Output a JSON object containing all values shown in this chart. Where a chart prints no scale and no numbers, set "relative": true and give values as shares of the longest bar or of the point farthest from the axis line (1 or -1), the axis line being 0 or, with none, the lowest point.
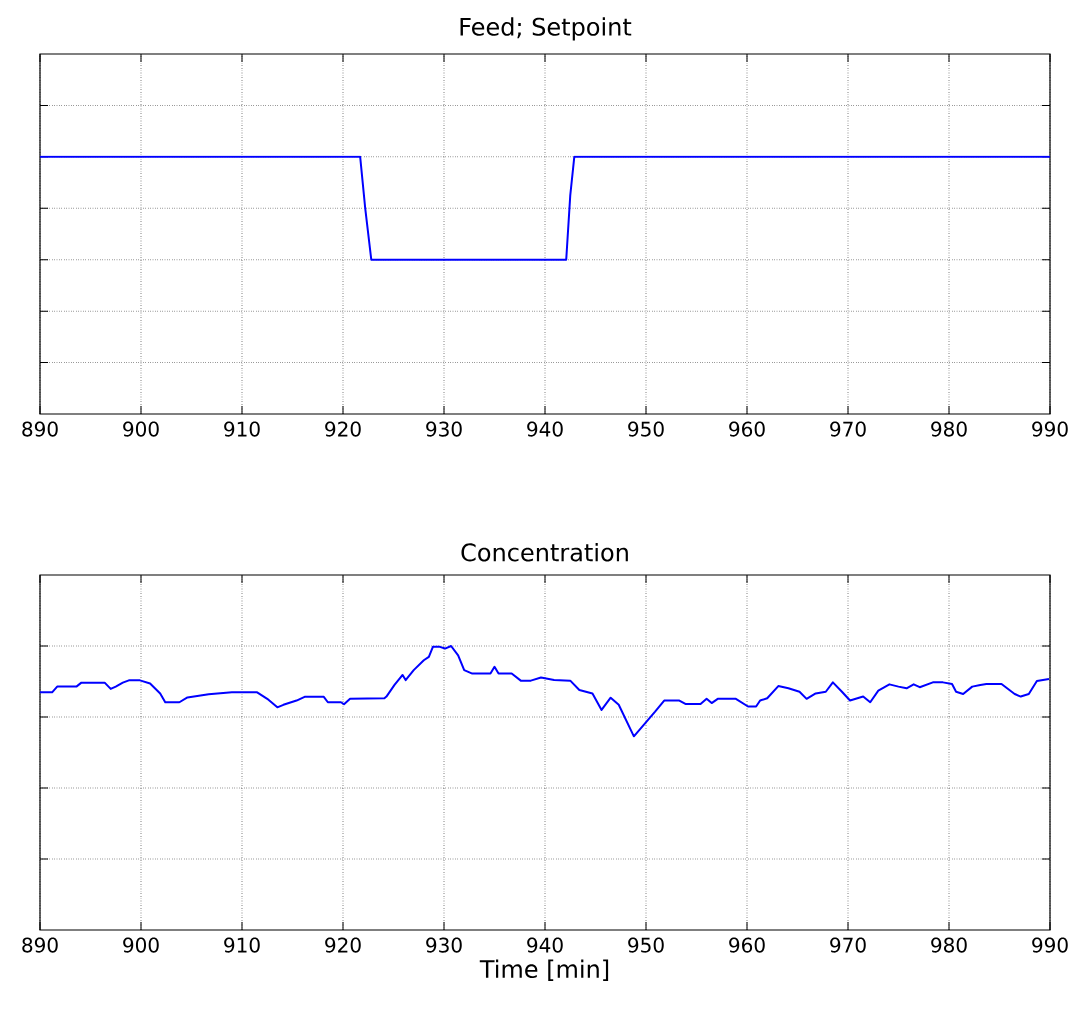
{
  "chart_data": [
    {
      "type": "line",
      "title": "Feed; Setpoint",
      "relative": true,
      "color": "#0000ff",
      "grid": true,
      "tick_labels": "x",
      "xlim": [
        890,
        990
      ],
      "xticks": [
        890,
        900,
        910,
        920,
        930,
        940,
        950,
        960,
        970,
        980,
        990
      ],
      "x": [
        890,
        921.7,
        922.2,
        922.8,
        942.1,
        942.5,
        942.9,
        990
      ],
      "values": [
        1,
        1,
        0.8,
        0.6,
        0.6,
        0.85,
        1,
        1
      ]
    },
    {
      "type": "line",
      "title": "Concentration",
      "xlabel": "Time [min]",
      "relative": true,
      "color": "#0000ff",
      "grid": true,
      "tick_labels": "x",
      "xlim": [
        890,
        990
      ],
      "xticks": [
        890,
        900,
        910,
        920,
        930,
        940,
        950,
        960,
        970,
        980,
        990
      ],
      "x": [
        890,
        891.2,
        891.7,
        893.6,
        894.1,
        896.4,
        897.0,
        897.5,
        898.2,
        898.8,
        899.9,
        900.9,
        901.9,
        902.4,
        903.8,
        904.6,
        906.7,
        909.0,
        911.5,
        912.5,
        913.5,
        914.1,
        915.4,
        916.2,
        918.1,
        918.5,
        919.8,
        920.1,
        920.7,
        924.1,
        924.3,
        925.1,
        925.9,
        926.2,
        927.0,
        928.0,
        928.5,
        928.9,
        929.6,
        930.1,
        930.7,
        931.4,
        932.0,
        932.8,
        934.6,
        935.0,
        935.4,
        936.7,
        937.6,
        938.6,
        939.6,
        940.9,
        942.5,
        943.4,
        944.7,
        945.6,
        946.5,
        947.3,
        948.8,
        950.2,
        950.9,
        951.8,
        953.3,
        953.9,
        955.4,
        956.0,
        956.5,
        957.1,
        958.3,
        958.9,
        960.1,
        960.9,
        961.3,
        962.0,
        963.1,
        964.1,
        965.2,
        965.9,
        966.8,
        967.8,
        968.5,
        969.4,
        970.2,
        971.5,
        972.2,
        973.0,
        974.1,
        975.0,
        975.8,
        976.5,
        977.1,
        978.4,
        979.4,
        980.3,
        980.7,
        981.4,
        982.3,
        983.1,
        983.7,
        985.2,
        986.5,
        987.1,
        987.9,
        988.7,
        989.9
      ],
      "values": [
        0.837,
        0.837,
        0.857,
        0.857,
        0.871,
        0.871,
        0.849,
        0.857,
        0.871,
        0.879,
        0.879,
        0.868,
        0.833,
        0.802,
        0.802,
        0.819,
        0.83,
        0.837,
        0.837,
        0.814,
        0.784,
        0.793,
        0.808,
        0.821,
        0.821,
        0.802,
        0.802,
        0.795,
        0.814,
        0.816,
        0.822,
        0.863,
        0.898,
        0.88,
        0.915,
        0.95,
        0.962,
        0.997,
        0.997,
        0.991,
        1,
        0.967,
        0.915,
        0.903,
        0.903,
        0.927,
        0.903,
        0.903,
        0.878,
        0.878,
        0.889,
        0.88,
        0.878,
        0.845,
        0.833,
        0.775,
        0.818,
        0.793,
        0.682,
        0.74,
        0.769,
        0.808,
        0.808,
        0.796,
        0.796,
        0.814,
        0.799,
        0.814,
        0.814,
        0.814,
        0.787,
        0.787,
        0.808,
        0.816,
        0.859,
        0.851,
        0.839,
        0.814,
        0.833,
        0.839,
        0.872,
        0.839,
        0.808,
        0.822,
        0.802,
        0.843,
        0.865,
        0.857,
        0.851,
        0.865,
        0.855,
        0.872,
        0.872,
        0.866,
        0.839,
        0.831,
        0.857,
        0.863,
        0.866,
        0.866,
        0.831,
        0.822,
        0.831,
        0.877,
        0.884
      ]
    }
  ]
}
